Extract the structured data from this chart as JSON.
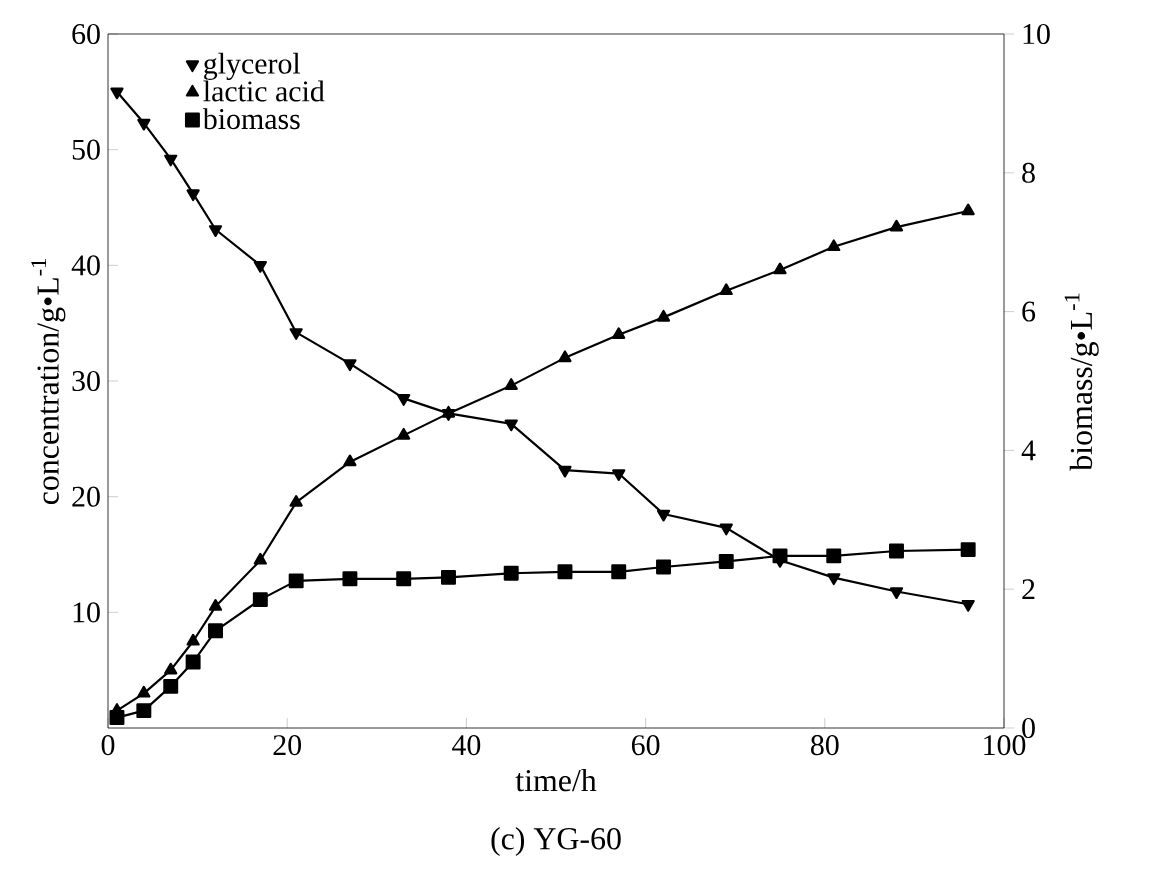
{
  "chart_data": {
    "type": "line",
    "title": "(c) YG-60",
    "xlabel": "time/h",
    "ylabel": "concentration/g•L$^{-1}$",
    "y2label": "biomass/g•L$^{-1}$",
    "xlim": [
      0,
      100
    ],
    "xticks": [
      0,
      20,
      40,
      60,
      80,
      100
    ],
    "ylim": [
      0,
      60
    ],
    "yticks": [
      10,
      20,
      30,
      40,
      50,
      60
    ],
    "y2lim": [
      0,
      10
    ],
    "y2ticks": [
      0,
      2,
      4,
      6,
      8,
      10
    ],
    "legend": "top left",
    "grid": false,
    "line_style": "solid",
    "series": [
      {
        "name": "glycerol",
        "color": "#000000",
        "marker": "triangle-down",
        "x": [
          1,
          4,
          7,
          9.5,
          12,
          17,
          21,
          27,
          33,
          38,
          45,
          51,
          57,
          62,
          69,
          75,
          81,
          88,
          96
        ],
        "values": [
          55,
          52.3,
          49.2,
          46.2,
          43.1,
          40,
          34.2,
          31.5,
          28.5,
          27.2,
          26.3,
          22.3,
          22,
          18.5,
          17.3,
          14.5,
          13,
          11.8,
          10.7
        ]
      },
      {
        "name": "lactic acid",
        "color": "#000000",
        "marker": "triangle",
        "x": [
          1,
          4,
          7,
          9.5,
          12,
          17,
          21,
          27,
          33,
          38,
          45,
          51,
          57,
          62,
          69,
          75,
          81,
          88,
          96
        ],
        "values": [
          1.5,
          3,
          5,
          7.5,
          10.5,
          14.5,
          19.5,
          23,
          25.3,
          27.2,
          29.6,
          32,
          34,
          35.5,
          37.8,
          39.6,
          41.6,
          43.3,
          44.7
        ]
      },
      {
        "name": "biomass",
        "color": "#000000",
        "marker": "square",
        "axis": "y2",
        "x": [
          1,
          4,
          7,
          9.5,
          12,
          17,
          21,
          27,
          33,
          38,
          45,
          51,
          57,
          62,
          69,
          75,
          81,
          88,
          96
        ],
        "values": [
          0.15,
          0.25,
          0.6,
          0.95,
          1.4,
          1.85,
          2.12,
          2.15,
          2.15,
          2.17,
          2.23,
          2.25,
          2.25,
          2.32,
          2.4,
          2.48,
          2.48,
          2.55,
          2.57
        ]
      }
    ]
  }
}
